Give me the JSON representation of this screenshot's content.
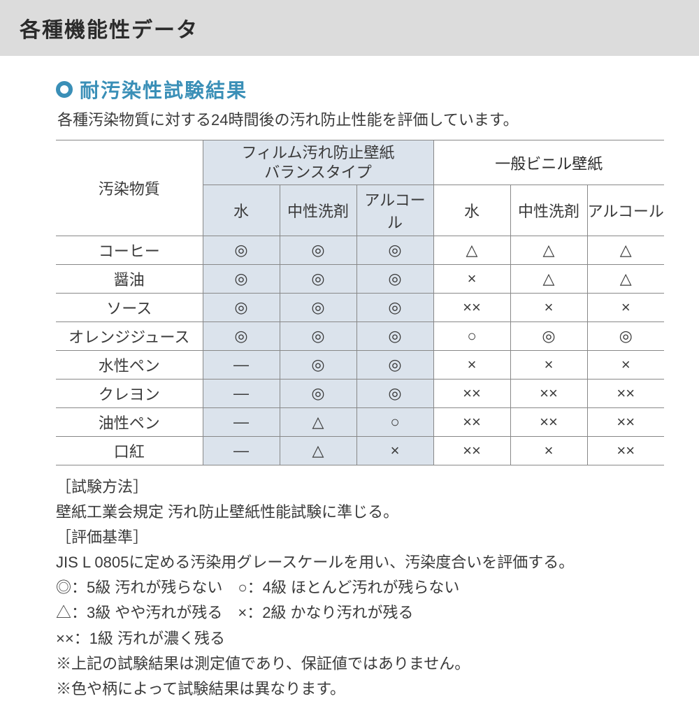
{
  "colors": {
    "header_bg": "#dcdcdc",
    "accent": "#3a8fb7",
    "tint_bg": "#dbe3ec",
    "rule": "#888888",
    "text": "#3a3a3a",
    "page_bg": "#ffffff"
  },
  "typography": {
    "page_title_fontsize": 30,
    "section_title_fontsize": 28,
    "body_fontsize": 22,
    "table_fontsize": 22,
    "font_family": "Hiragino Kaku Gothic ProN / Yu Gothic / Meiryo"
  },
  "page_title": "各種機能性データ",
  "section": {
    "heading": "耐汚染性試験結果",
    "lead": "各種汚染物質に対する24時間後の汚れ防止性能を評価しています。"
  },
  "table": {
    "type": "table",
    "row_header": "汚染物質",
    "groups": [
      {
        "label": "フィルム汚れ防止壁紙\nバランスタイプ",
        "tinted": true,
        "accent": true
      },
      {
        "label": "一般ビニル壁紙",
        "tinted": false,
        "accent": false
      }
    ],
    "sub_columns": [
      "水",
      "中性洗剤",
      "アルコール",
      "水",
      "中性洗剤",
      "アルコール"
    ],
    "rows": [
      {
        "label": "コーヒー",
        "cells": [
          "◎",
          "◎",
          "◎",
          "△",
          "△",
          "△"
        ]
      },
      {
        "label": "醤油",
        "cells": [
          "◎",
          "◎",
          "◎",
          "×",
          "△",
          "△"
        ]
      },
      {
        "label": "ソース",
        "cells": [
          "◎",
          "◎",
          "◎",
          "××",
          "×",
          "×"
        ]
      },
      {
        "label": "オレンジジュース",
        "cells": [
          "◎",
          "◎",
          "◎",
          "○",
          "◎",
          "◎"
        ]
      },
      {
        "label": "水性ペン",
        "cells": [
          "―",
          "◎",
          "◎",
          "×",
          "×",
          "×"
        ]
      },
      {
        "label": "クレヨン",
        "cells": [
          "―",
          "◎",
          "◎",
          "××",
          "××",
          "××"
        ]
      },
      {
        "label": "油性ペン",
        "cells": [
          "―",
          "△",
          "○",
          "××",
          "××",
          "××"
        ]
      },
      {
        "label": "口紅",
        "cells": [
          "―",
          "△",
          "×",
          "××",
          "×",
          "××"
        ]
      }
    ]
  },
  "notes": {
    "method_label": "［試験方法］",
    "method_body": "壁紙工業会規定 汚れ防止壁紙性能試験に準じる。",
    "criteria_label": "［評価基準］",
    "criteria_body": "JIS L 0805に定める汚染用グレースケールを用い、汚染度合いを評価する。",
    "legend_line1": "◎：5級 汚れが残らない　○：4級 ほとんど汚れが残らない",
    "legend_line2": "△：3級 やや汚れが残る　×：2級 かなり汚れが残る",
    "legend_line3": "××：1級 汚れが濃く残る",
    "disclaimer1": "※上記の試験結果は測定値であり、保証値ではありません。",
    "disclaimer2": "※色や柄によって試験結果は異なります。"
  }
}
